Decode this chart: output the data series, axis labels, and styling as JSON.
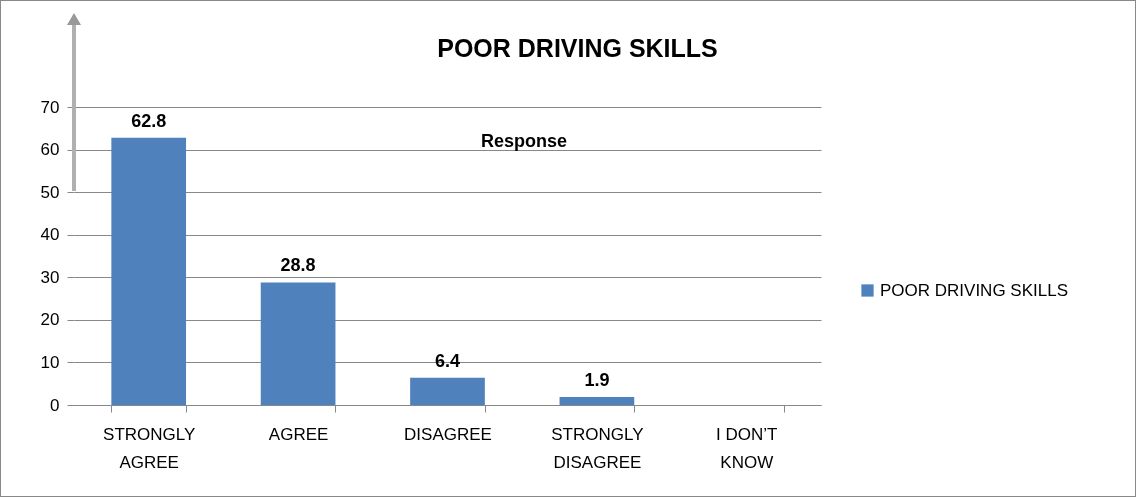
{
  "chart_data": {
    "type": "bar",
    "title": "POOR DRIVING SKILLS",
    "annotations": [
      "Response"
    ],
    "categories": [
      "STRONGLY AGREE",
      "AGREE",
      "DISAGREE",
      "STRONGLY DISAGREE",
      "I DON’T KNOW"
    ],
    "series": [
      {
        "name": "POOR DRIVING SKILLS",
        "color": "#4f81bd",
        "values": [
          62.8,
          28.8,
          6.4,
          1.9,
          null
        ]
      }
    ],
    "ylim": [
      0,
      70
    ],
    "yticks": [
      0,
      10,
      20,
      30,
      40,
      50,
      60,
      70
    ],
    "grid": "y",
    "legend": "right",
    "data_labels": true
  }
}
